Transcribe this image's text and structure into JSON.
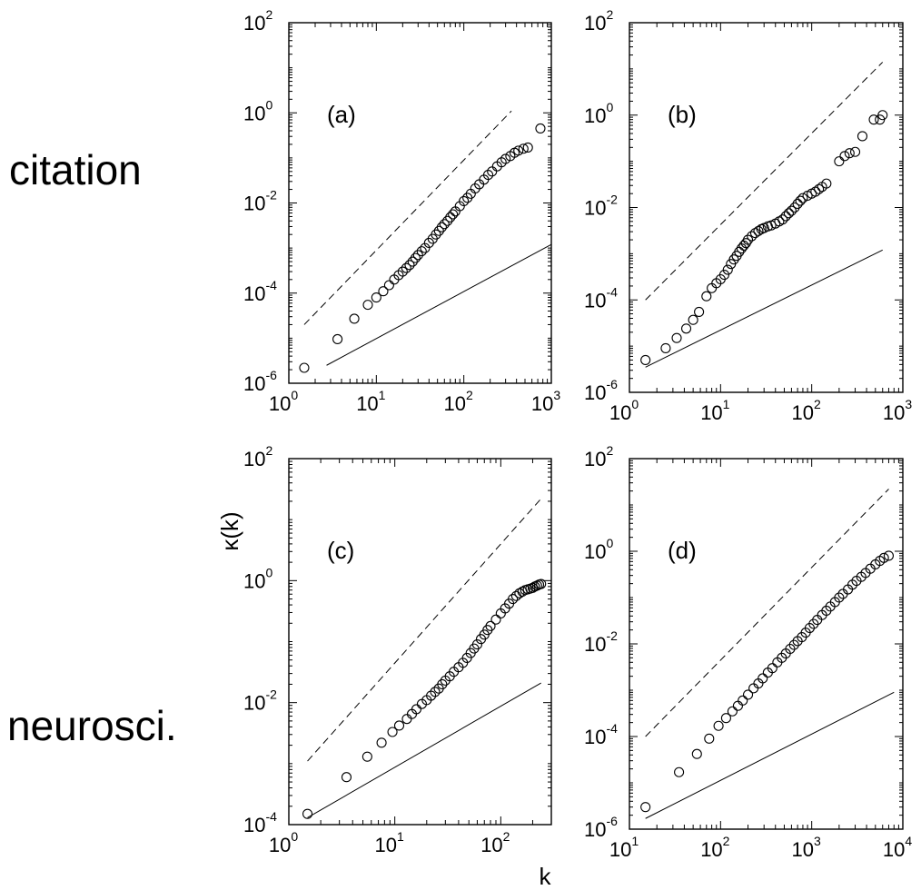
{
  "row_labels": {
    "top": "citation",
    "bottom": "neurosci."
  },
  "x_title": "k",
  "y_title": "κ(k)",
  "chart_data": [
    {
      "type": "scatter",
      "panel": "(a)",
      "xscale": "log",
      "yscale": "log",
      "xlim": [
        1,
        1000
      ],
      "ylim": [
        1e-06,
        100
      ],
      "x_ticks": [
        1,
        10,
        100,
        1000
      ],
      "y_ticks": [
        1e-06,
        0.0001,
        0.01,
        1,
        100
      ],
      "x_tick_labels": [
        [
          "10",
          "0"
        ],
        [
          "10",
          "1"
        ],
        [
          "10",
          "2"
        ],
        [
          "10",
          "3"
        ]
      ],
      "y_tick_labels": [
        [
          "10",
          "-6"
        ],
        [
          "10",
          "-4"
        ],
        [
          "10",
          "-2"
        ],
        [
          "10",
          "0"
        ],
        [
          "10",
          "2"
        ]
      ],
      "series": [
        {
          "style": "markers",
          "x": [
            1.5,
            3.6,
            5.6,
            8,
            10,
            12,
            14,
            16,
            18,
            20,
            22,
            24,
            26,
            28,
            30,
            33,
            36,
            40,
            44,
            48,
            52,
            56,
            60,
            65,
            70,
            75,
            80,
            90,
            100,
            110,
            120,
            135,
            150,
            170,
            190,
            210,
            240,
            270,
            300,
            340,
            380,
            420,
            480,
            540,
            750
          ],
          "y": [
            2.2e-06,
            9.5e-06,
            2.7e-05,
            5.5e-05,
            8e-05,
            0.00011,
            0.00015,
            0.0002,
            0.00025,
            0.0003,
            0.00036,
            0.00042,
            0.0005,
            0.0006,
            0.0007,
            0.00085,
            0.001,
            0.0013,
            0.0016,
            0.002,
            0.0024,
            0.0029,
            0.0034,
            0.004,
            0.0048,
            0.0056,
            0.0065,
            0.0085,
            0.011,
            0.013,
            0.016,
            0.021,
            0.026,
            0.033,
            0.042,
            0.05,
            0.065,
            0.08,
            0.095,
            0.11,
            0.13,
            0.145,
            0.16,
            0.17,
            0.45
          ]
        },
        {
          "style": "dashed",
          "x": [
            1.5,
            350
          ],
          "y": [
            2e-05,
            1.1
          ]
        },
        {
          "style": "solid",
          "x": [
            2.7,
            1000
          ],
          "y": [
            2.5e-06,
            0.0012
          ]
        }
      ]
    },
    {
      "type": "scatter",
      "panel": "(b)",
      "xscale": "log",
      "yscale": "log",
      "xlim": [
        1,
        1000
      ],
      "ylim": [
        1e-06,
        100
      ],
      "x_ticks": [
        1,
        10,
        100,
        1000
      ],
      "y_ticks": [
        1e-06,
        0.0001,
        0.01,
        1,
        100
      ],
      "x_tick_labels": [
        [
          "10",
          "0"
        ],
        [
          "10",
          "1"
        ],
        [
          "10",
          "2"
        ],
        [
          "10",
          "3"
        ]
      ],
      "y_tick_labels": [
        [
          "10",
          "-6"
        ],
        [
          "10",
          "-4"
        ],
        [
          "10",
          "-2"
        ],
        [
          "10",
          "0"
        ],
        [
          "10",
          "2"
        ]
      ],
      "series": [
        {
          "style": "markers",
          "x": [
            1.5,
            2.5,
            3.3,
            4.2,
            5,
            5.8,
            7,
            8,
            9,
            10,
            11,
            12,
            13,
            14,
            15,
            16,
            17,
            18,
            19,
            20,
            22,
            24,
            26,
            28,
            30,
            33,
            36,
            40,
            44,
            48,
            52,
            56,
            60,
            65,
            70,
            75,
            80,
            90,
            100,
            110,
            120,
            130,
            145,
            200,
            230,
            260,
            300,
            360,
            480,
            560,
            600
          ],
          "y": [
            5e-06,
            9e-06,
            1.5e-05,
            2.4e-05,
            3.7e-05,
            5.5e-05,
            0.00012,
            0.00018,
            0.00023,
            0.00028,
            0.00035,
            0.00045,
            0.0006,
            0.00075,
            0.0009,
            0.0011,
            0.0013,
            0.0015,
            0.0017,
            0.002,
            0.0024,
            0.0028,
            0.0031,
            0.0034,
            0.0036,
            0.0039,
            0.0041,
            0.0045,
            0.005,
            0.0055,
            0.0065,
            0.0075,
            0.0085,
            0.01,
            0.012,
            0.014,
            0.016,
            0.018,
            0.02,
            0.022,
            0.025,
            0.028,
            0.033,
            0.1,
            0.13,
            0.15,
            0.16,
            0.35,
            0.8,
            0.8,
            1.0
          ]
        },
        {
          "style": "dashed",
          "x": [
            1.5,
            600
          ],
          "y": [
            0.0001,
            14
          ]
        },
        {
          "style": "solid",
          "x": [
            1.5,
            600
          ],
          "y": [
            3.5e-06,
            0.0012
          ]
        }
      ]
    },
    {
      "type": "scatter",
      "panel": "(c)",
      "xscale": "log",
      "yscale": "log",
      "xlim": [
        1,
        300
      ],
      "ylim": [
        0.0001,
        100
      ],
      "x_ticks": [
        1,
        10,
        100
      ],
      "y_ticks": [
        0.0001,
        0.01,
        1,
        100
      ],
      "x_tick_labels": [
        [
          "10",
          "0"
        ],
        [
          "10",
          "1"
        ],
        [
          "10",
          "2"
        ]
      ],
      "y_tick_labels": [
        [
          "10",
          "-4"
        ],
        [
          "10",
          "-2"
        ],
        [
          "10",
          "0"
        ],
        [
          "10",
          "2"
        ]
      ],
      "series": [
        {
          "style": "markers",
          "x": [
            1.5,
            3.5,
            5.5,
            7.5,
            9.5,
            11,
            13,
            14.5,
            16,
            18,
            20,
            22,
            24,
            26,
            28,
            30,
            33,
            36,
            40,
            44,
            48,
            52,
            56,
            60,
            65,
            70,
            75,
            80,
            90,
            100,
            110,
            120,
            130,
            140,
            150,
            160,
            170,
            180,
            190,
            200,
            210,
            220,
            230,
            240
          ],
          "y": [
            0.00015,
            0.0006,
            0.0013,
            0.0022,
            0.0033,
            0.0042,
            0.0054,
            0.0065,
            0.0078,
            0.0095,
            0.011,
            0.013,
            0.015,
            0.017,
            0.02,
            0.023,
            0.027,
            0.032,
            0.038,
            0.045,
            0.054,
            0.065,
            0.077,
            0.09,
            0.11,
            0.13,
            0.155,
            0.18,
            0.23,
            0.29,
            0.35,
            0.42,
            0.5,
            0.56,
            0.62,
            0.66,
            0.7,
            0.72,
            0.74,
            0.76,
            0.8,
            0.83,
            0.86,
            0.88
          ]
        },
        {
          "style": "dashed",
          "x": [
            1.5,
            240
          ],
          "y": [
            0.0011,
            22
          ]
        },
        {
          "style": "solid",
          "x": [
            1.5,
            240
          ],
          "y": [
            0.00013,
            0.021
          ]
        }
      ]
    },
    {
      "type": "scatter",
      "panel": "(d)",
      "xscale": "log",
      "yscale": "log",
      "xlim": [
        10,
        10000
      ],
      "ylim": [
        1e-06,
        100
      ],
      "x_ticks": [
        10,
        100,
        1000,
        10000
      ],
      "y_ticks": [
        1e-06,
        0.0001,
        0.01,
        1,
        100
      ],
      "x_tick_labels": [
        [
          "10",
          "1"
        ],
        [
          "10",
          "2"
        ],
        [
          "10",
          "3"
        ],
        [
          "10",
          "4"
        ]
      ],
      "y_tick_labels": [
        [
          "10",
          "-6"
        ],
        [
          "10",
          "-4"
        ],
        [
          "10",
          "-2"
        ],
        [
          "10",
          "0"
        ],
        [
          "10",
          "2"
        ]
      ],
      "series": [
        {
          "style": "markers",
          "x": [
            15,
            35,
            55,
            75,
            95,
            115,
            135,
            155,
            175,
            200,
            230,
            260,
            290,
            330,
            370,
            420,
            470,
            520,
            580,
            640,
            700,
            780,
            860,
            950,
            1050,
            1150,
            1300,
            1450,
            1600,
            1800,
            2000,
            2200,
            2500,
            2800,
            3100,
            3500,
            3900,
            4400,
            5000,
            5600,
            6200,
            7000
          ],
          "y": [
            3e-06,
            1.7e-05,
            4.2e-05,
            9e-05,
            0.00017,
            0.00025,
            0.00035,
            0.00046,
            0.0006,
            0.0008,
            0.0011,
            0.0014,
            0.0018,
            0.0024,
            0.003,
            0.004,
            0.005,
            0.0062,
            0.0078,
            0.0095,
            0.0115,
            0.014,
            0.0175,
            0.022,
            0.027,
            0.033,
            0.042,
            0.052,
            0.064,
            0.08,
            0.1,
            0.12,
            0.15,
            0.19,
            0.23,
            0.28,
            0.34,
            0.42,
            0.52,
            0.62,
            0.72,
            0.8
          ]
        },
        {
          "style": "dashed",
          "x": [
            15,
            7000
          ],
          "y": [
            0.0001,
            22
          ]
        },
        {
          "style": "solid",
          "x": [
            15,
            8000
          ],
          "y": [
            1.7e-06,
            0.0009
          ]
        }
      ]
    }
  ]
}
